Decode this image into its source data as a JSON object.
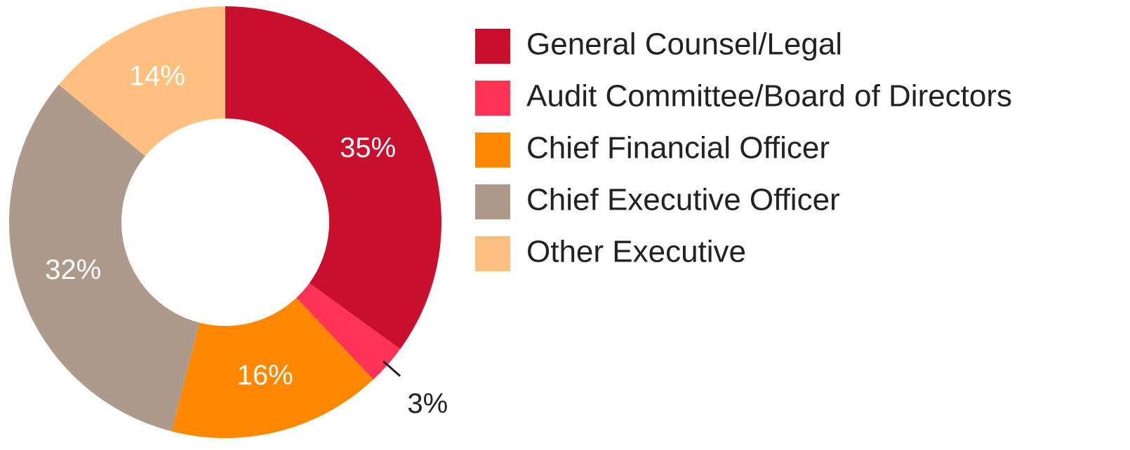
{
  "chart_data": {
    "type": "donut",
    "categories": [
      "General Counsel/Legal",
      "Audit Committee/Board of Directors",
      "Chief Financial Officer",
      "Chief Executive Officer",
      "Other Executive"
    ],
    "values": [
      35,
      3,
      16,
      32,
      14
    ],
    "value_labels": [
      "35%",
      "3%",
      "16%",
      "32%",
      "14%"
    ],
    "colors": [
      "#c8102e",
      "#ff3355",
      "#ff8800",
      "#ad9a8a",
      "#ffc07f"
    ],
    "legend": "right"
  }
}
